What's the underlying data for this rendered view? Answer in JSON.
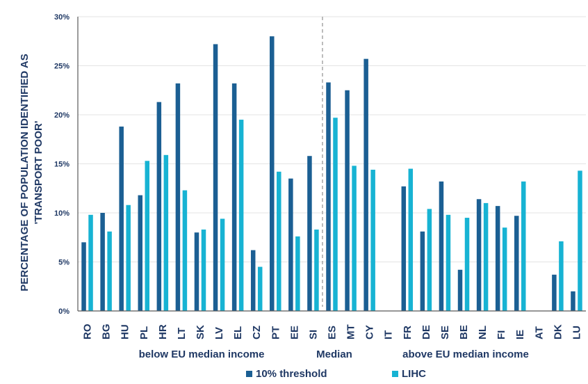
{
  "chart_data": {
    "type": "bar",
    "ylabel_line1": "PERCENTAGE OF POPULATION IDENTIFIED AS",
    "ylabel_line2": "'TRANSPORT POOR'",
    "ylim": [
      0,
      30
    ],
    "yticks": [
      "0%",
      "5%",
      "10%",
      "15%",
      "20%",
      "25%",
      "30%"
    ],
    "categories": [
      "RO",
      "BG",
      "HU",
      "PL",
      "HR",
      "LT",
      "SK",
      "LV",
      "EL",
      "CZ",
      "PT",
      "EE",
      "SI",
      "ES",
      "MT",
      "CY",
      "IT",
      "FR",
      "DE",
      "SE",
      "BE",
      "NL",
      "FI",
      "IE",
      "AT",
      "DK",
      "LU"
    ],
    "series": [
      {
        "name": "10% threshold",
        "color": "#1b5f93",
        "values": [
          7.0,
          10.0,
          18.8,
          11.8,
          21.3,
          23.2,
          8.0,
          27.2,
          23.2,
          6.2,
          28.0,
          13.5,
          15.8,
          23.3,
          22.5,
          25.7,
          null,
          12.7,
          8.1,
          13.2,
          4.2,
          11.4,
          10.7,
          9.7,
          null,
          3.7,
          2.0
        ]
      },
      {
        "name": "LIHC",
        "color": "#17b3d3",
        "values": [
          9.8,
          8.1,
          10.8,
          15.3,
          15.9,
          12.3,
          8.3,
          9.4,
          19.5,
          4.5,
          14.2,
          7.6,
          8.3,
          19.7,
          14.8,
          14.4,
          null,
          14.5,
          10.4,
          9.8,
          9.5,
          11.0,
          8.5,
          13.2,
          null,
          7.1,
          14.3
        ]
      }
    ],
    "group_labels": {
      "below": "below EU median income",
      "median": "Median",
      "above": "above EU median income"
    },
    "median_after_category": "ES",
    "grid": true,
    "legend_position": "bottom"
  }
}
